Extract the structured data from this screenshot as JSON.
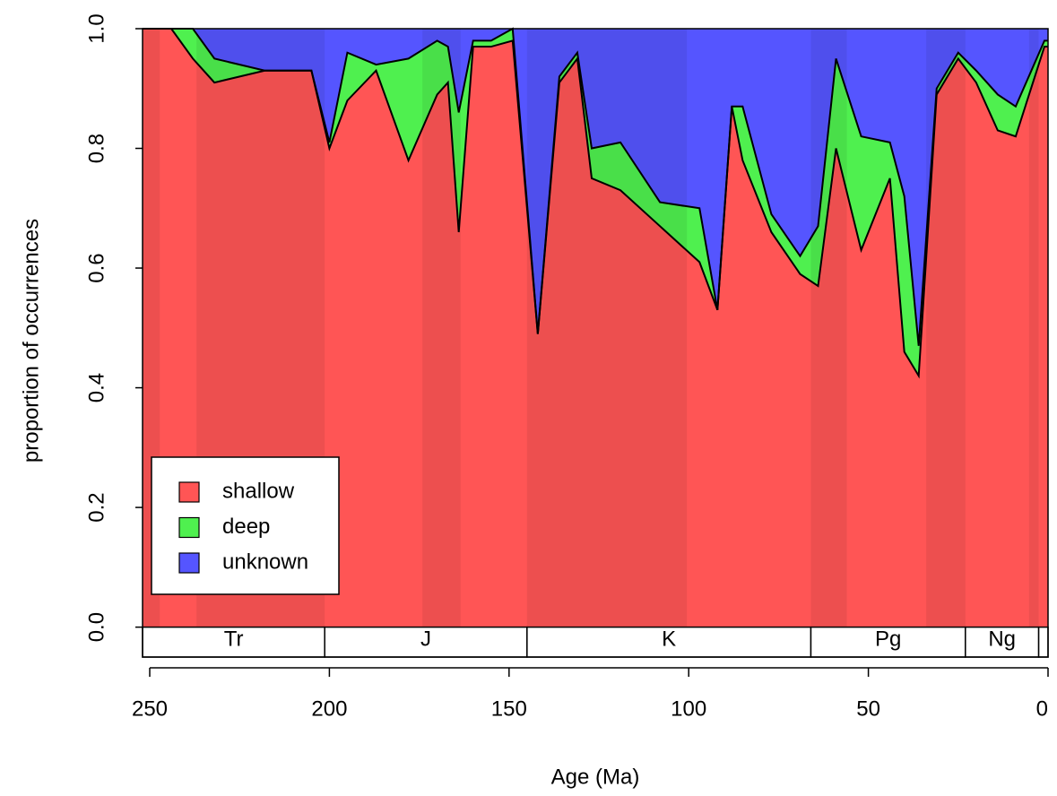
{
  "chart_data": {
    "type": "stacked-area",
    "x_label": "Age (Ma)",
    "y_label": "proportion of occurrences",
    "xlim": [
      252,
      0
    ],
    "xticks": [
      250,
      200,
      150,
      100,
      50,
      0
    ],
    "ylim": [
      -0.05,
      1
    ],
    "yticks": [
      {
        "value": 0,
        "label": "0.0"
      },
      0.2,
      0.4,
      0.6,
      0.8,
      {
        "value": 1,
        "label": "1.0"
      }
    ],
    "x": [
      252,
      244,
      238,
      232,
      218,
      205,
      200,
      195,
      187,
      178,
      170,
      167,
      164,
      160,
      155,
      149,
      142,
      136,
      131,
      127,
      119,
      108,
      97,
      92,
      88,
      85,
      77,
      69,
      64,
      59,
      52,
      44,
      40,
      36,
      31,
      25,
      20,
      14,
      9,
      1,
      0
    ],
    "series": [
      {
        "name": "shallow",
        "color": "#ff5555",
        "values": [
          1,
          1,
          0.95,
          0.91,
          0.93,
          0.93,
          0.8,
          0.88,
          0.93,
          0.78,
          0.89,
          0.91,
          0.66,
          0.97,
          0.97,
          0.98,
          0.49,
          0.91,
          0.95,
          0.75,
          0.73,
          0.67,
          0.61,
          0.53,
          0.87,
          0.78,
          0.66,
          0.59,
          0.57,
          0.8,
          0.63,
          0.75,
          0.46,
          0.42,
          0.89,
          0.95,
          0.91,
          0.83,
          0.82,
          0.97,
          0.97
        ]
      },
      {
        "name": "deep",
        "color": "#4ff04f",
        "values": [
          0,
          0,
          0.05,
          0.04,
          0,
          0,
          0.01,
          0.08,
          0.01,
          0.17,
          0.09,
          0.06,
          0.2,
          0.01,
          0.01,
          0.02,
          0,
          0.01,
          0.01,
          0.05,
          0.08,
          0.04,
          0.09,
          0,
          0,
          0.09,
          0.03,
          0.03,
          0.1,
          0.15,
          0.19,
          0.06,
          0.26,
          0.05,
          0.01,
          0.01,
          0.02,
          0.06,
          0.05,
          0.01,
          0.01
        ]
      },
      {
        "name": "unknown",
        "color": "#5555ff",
        "values": [
          0,
          0,
          0,
          0.05,
          0.07,
          0.07,
          0.19,
          0.04,
          0.06,
          0.05,
          0.02,
          0.03,
          0.14,
          0.02,
          0.02,
          0,
          0.51,
          0.08,
          0.04,
          0.2,
          0.19,
          0.29,
          0.3,
          0.47,
          0.13,
          0.13,
          0.31,
          0.38,
          0.33,
          0.05,
          0.18,
          0.19,
          0.28,
          0.53,
          0.1,
          0.04,
          0.07,
          0.11,
          0.13,
          0.02,
          0.02
        ]
      }
    ],
    "periods": [
      {
        "label": "Tr",
        "start": 252,
        "end": 201.3
      },
      {
        "label": "J",
        "start": 201.3,
        "end": 145
      },
      {
        "label": "K",
        "start": 145,
        "end": 66
      },
      {
        "label": "Pg",
        "start": 66,
        "end": 23
      },
      {
        "label": "Ng",
        "start": 23,
        "end": 2.6
      },
      {
        "label": null,
        "start": 2.6,
        "end": 0
      }
    ],
    "shaded_bands": [
      [
        252,
        247.2
      ],
      [
        237,
        201.3
      ],
      [
        174.1,
        163.5
      ],
      [
        145,
        100.5
      ],
      [
        66,
        56
      ],
      [
        33.9,
        23
      ],
      [
        5.3,
        2.6
      ]
    ],
    "legend": "bottom-left"
  }
}
